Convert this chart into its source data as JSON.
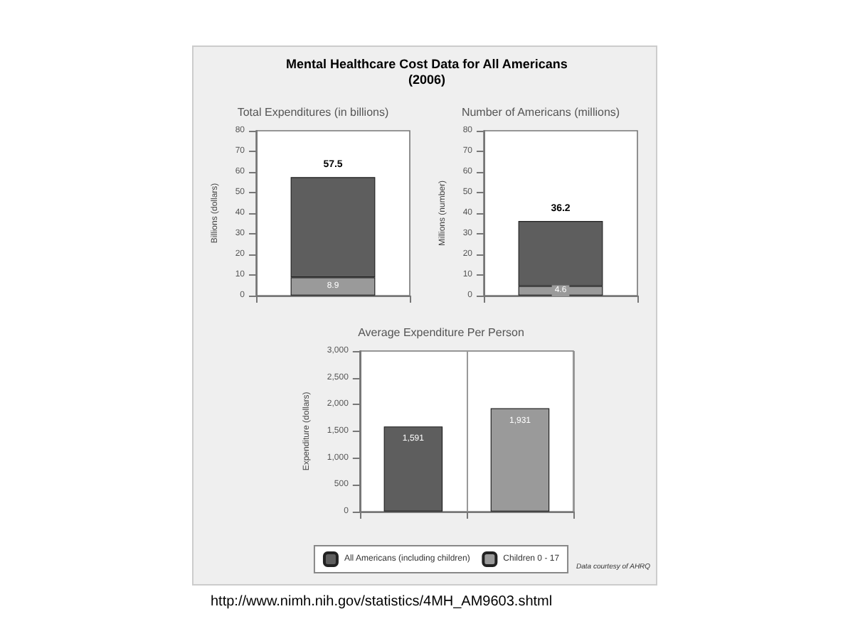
{
  "chart_data": [
    {
      "type": "bar",
      "title": "Total Expenditures (in billions)",
      "ylabel": "Billions (dollars)",
      "annotations": [
        "Mental Healthcare Cost Data for All Americans\n(2006)"
      ],
      "categories": [
        null
      ],
      "stacked": true,
      "ylim": [
        0,
        80
      ],
      "yticks": [
        0,
        10,
        20,
        30,
        40,
        50,
        60,
        70,
        80
      ],
      "legend": false,
      "totals": [
        "57.5"
      ],
      "series": [
        {
          "color": "#9a9a9a",
          "values": [
            8.9
          ],
          "value_labels": [
            "8.9"
          ]
        },
        {
          "color": "#5e5e5e",
          "values": [
            48.6
          ]
        }
      ]
    },
    {
      "type": "bar",
      "title": "Number of Americans (millions)",
      "ylabel": "Millions (number)",
      "categories": [
        null
      ],
      "stacked": true,
      "ylim": [
        0,
        80
      ],
      "yticks": [
        0,
        10,
        20,
        30,
        40,
        50,
        60,
        70,
        80
      ],
      "legend": false,
      "totals": [
        "36.2"
      ],
      "series": [
        {
          "color": "#9a9a9a",
          "values": [
            4.6
          ],
          "value_labels": [
            "4.6"
          ]
        },
        {
          "color": "#5e5e5e",
          "values": [
            31.6
          ]
        }
      ]
    },
    {
      "type": "bar",
      "title": "Average Expenditure Per Person",
      "ylabel": "Expenditure (dollars)",
      "categories": [
        null,
        null
      ],
      "grid": "x",
      "legend": "bottom",
      "annotations": [
        "Data courtesy of AHRQ",
        "http://www.nimh.nih.gov/statistics/4MH_AM9603.shtml"
      ],
      "ylim": [
        0,
        3000
      ],
      "yticks": [
        0,
        500,
        {
          "value": 1000,
          "label": "1,000"
        },
        {
          "value": 1500,
          "label": "1,500"
        },
        {
          "value": 2000,
          "label": "2,000"
        },
        {
          "value": 2500,
          "label": "2,500"
        },
        {
          "value": 3000,
          "label": "3,000"
        }
      ],
      "series": [
        {
          "name": "All Americans (including children)",
          "color": "#5e5e5e",
          "values": [
            1591,
            null
          ],
          "value_labels": [
            "1,591",
            null
          ]
        },
        {
          "name": "Children 0 - 17",
          "color": "#9a9a9a",
          "values": [
            null,
            1931
          ],
          "value_labels": [
            null,
            "1,931"
          ]
        }
      ]
    }
  ]
}
